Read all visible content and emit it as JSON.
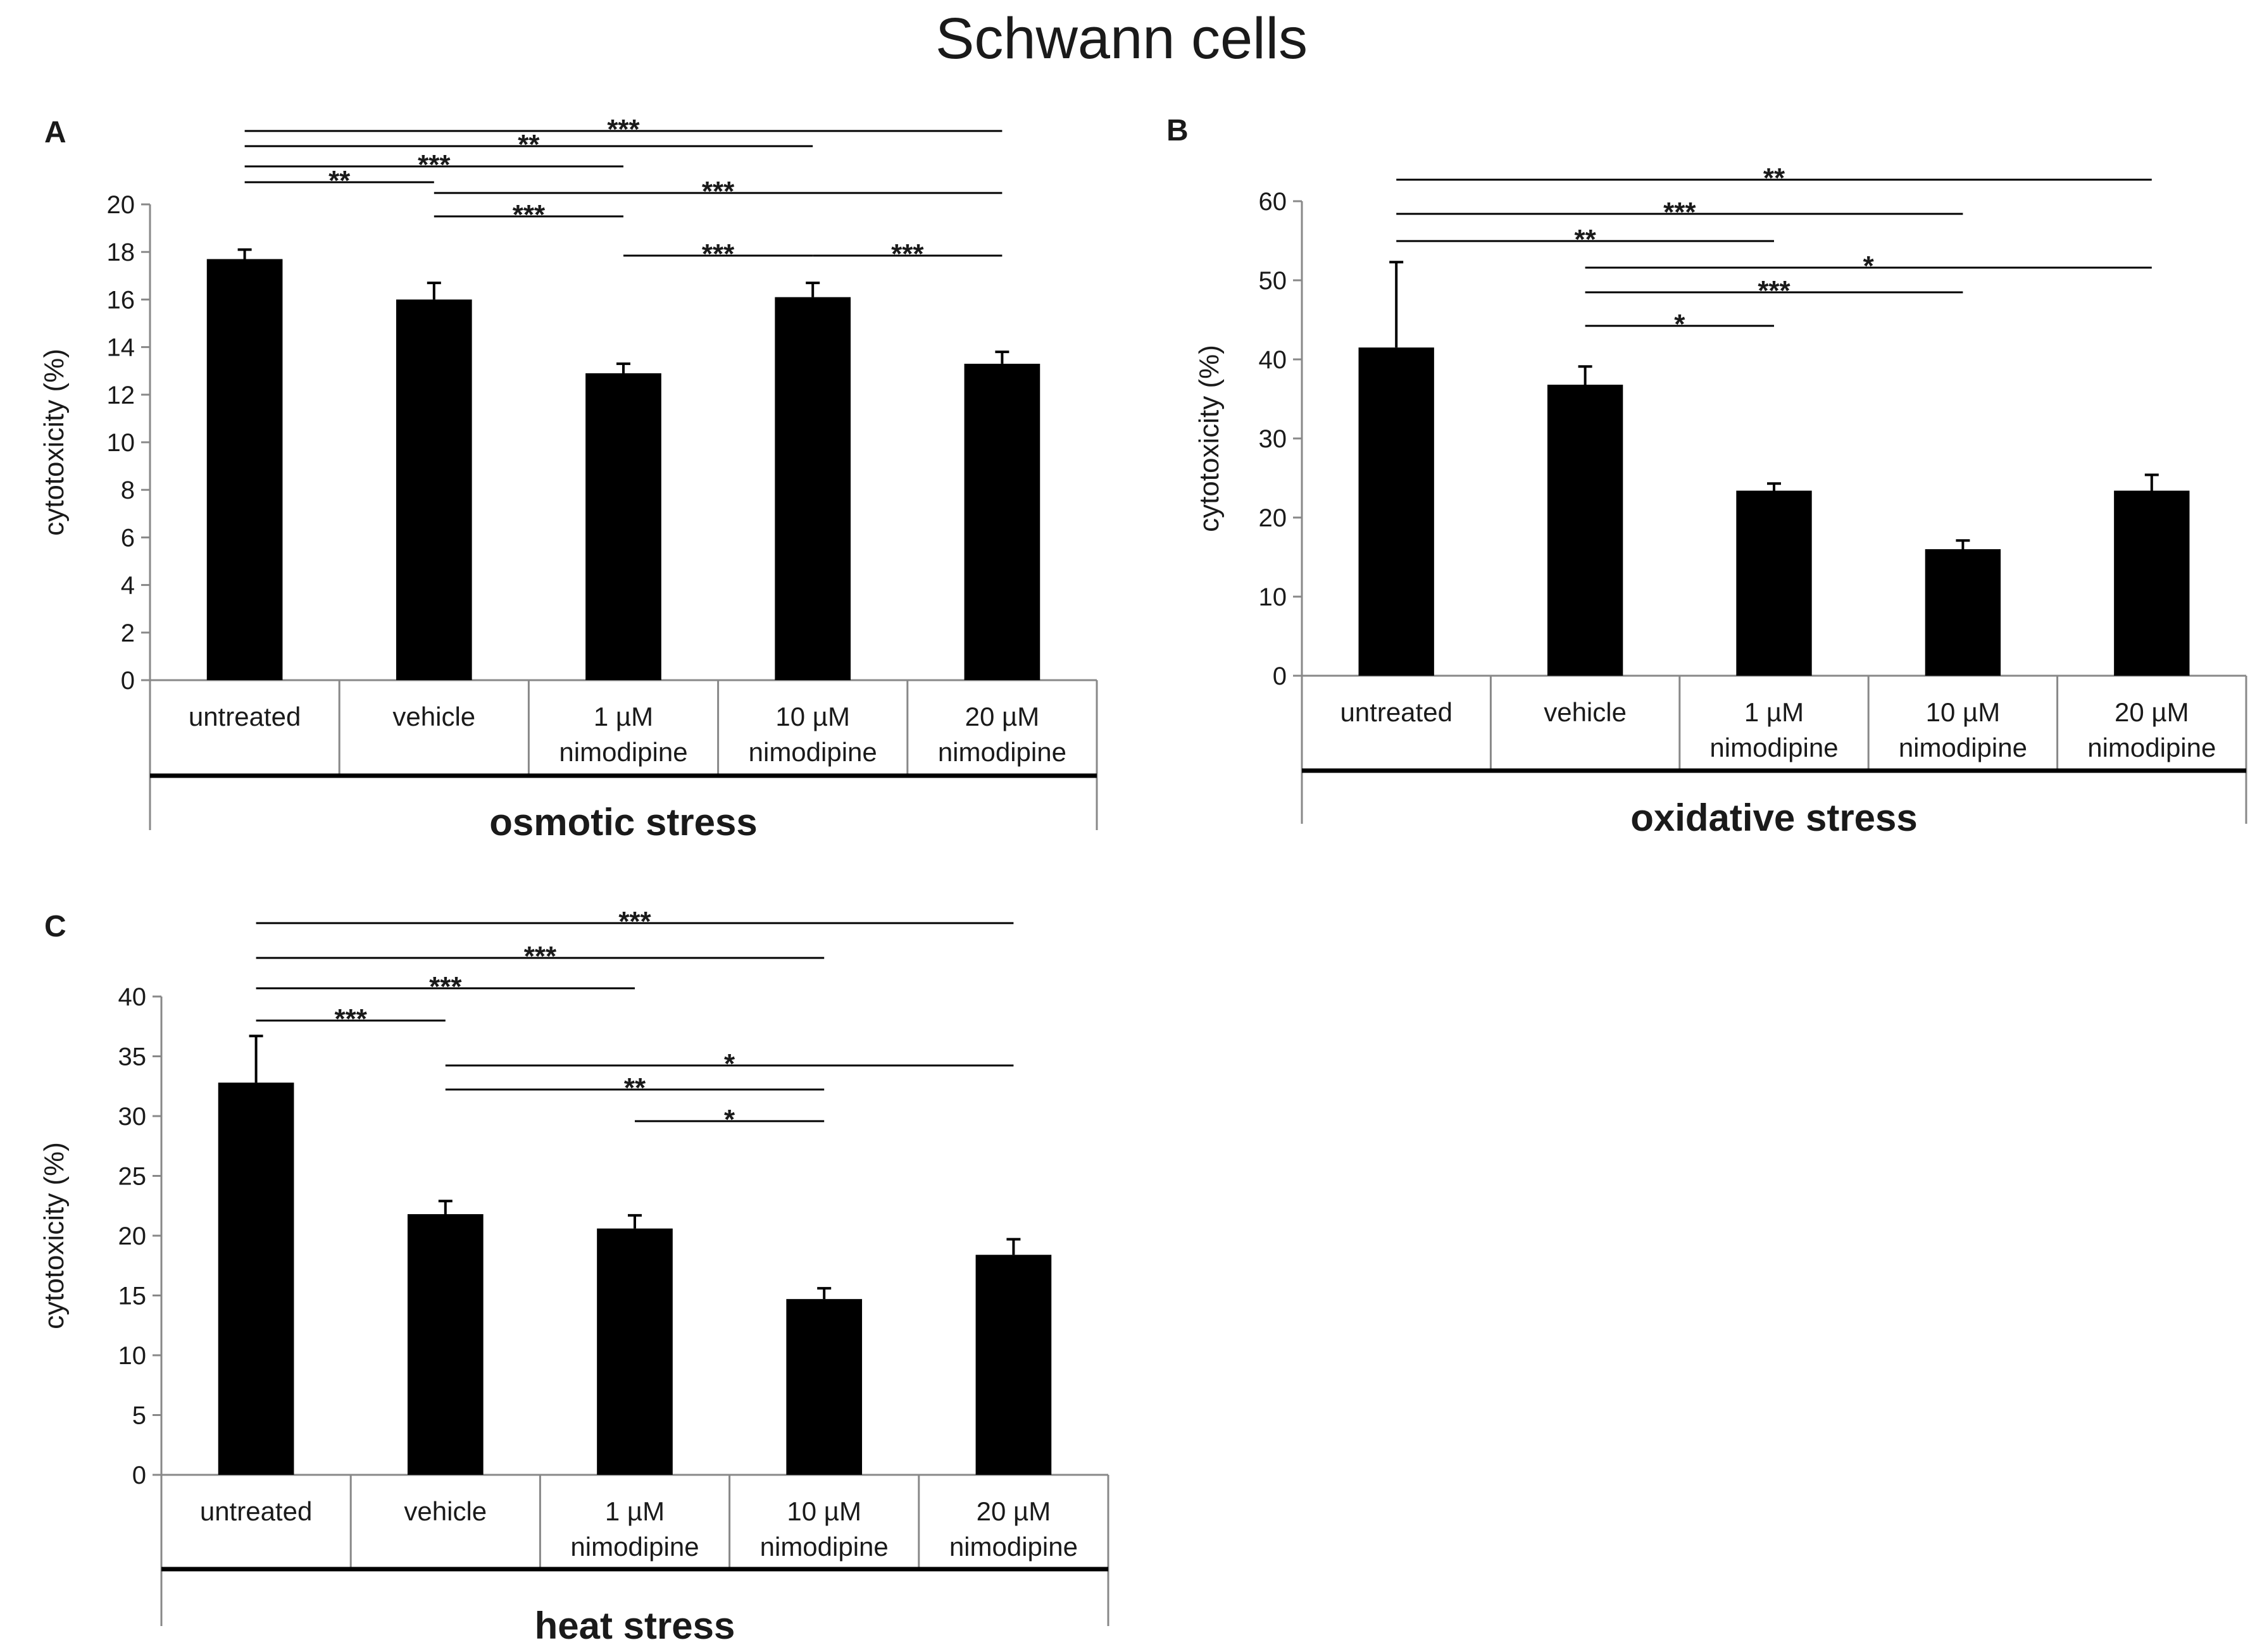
{
  "figure_title": "Schwann cells",
  "chart_data": [
    {
      "panel": "A",
      "type": "bar",
      "ylabel": "cytotoxicity  (%)",
      "group_label": "osmotic stress",
      "ylim": [
        0,
        20
      ],
      "yticks": [
        0,
        2,
        4,
        6,
        8,
        10,
        12,
        14,
        16,
        18,
        20
      ],
      "categories": [
        [
          "untreated"
        ],
        [
          "vehicle"
        ],
        [
          "1 µM",
          "nimodipine"
        ],
        [
          "10 µM",
          "nimodipine"
        ],
        [
          "20 µM",
          "nimodipine"
        ]
      ],
      "values": [
        17.7,
        16.0,
        12.9,
        16.1,
        13.3
      ],
      "errors": [
        0.4,
        0.7,
        0.4,
        0.6,
        0.5
      ],
      "significance": [
        {
          "from": 0,
          "to": 4,
          "label": "***"
        },
        {
          "from": 0,
          "to": 3,
          "label": "**"
        },
        {
          "from": 0,
          "to": 2,
          "label": "***"
        },
        {
          "from": 0,
          "to": 1,
          "label": "**"
        },
        {
          "from": 1,
          "to": 4,
          "label": "***"
        },
        {
          "from": 1,
          "to": 2,
          "label": "***"
        },
        {
          "from": 2,
          "to": 3,
          "label": "***"
        },
        {
          "from": 3,
          "to": 4,
          "label": "***"
        }
      ]
    },
    {
      "panel": "B",
      "type": "bar",
      "ylabel": "cytotoxicity  (%)",
      "group_label": "oxidative stress",
      "ylim": [
        0,
        60
      ],
      "yticks": [
        0,
        10,
        20,
        30,
        40,
        50,
        60
      ],
      "categories": [
        [
          "untreated"
        ],
        [
          "vehicle"
        ],
        [
          "1 µM",
          "nimodipine"
        ],
        [
          "10 µM",
          "nimodipine"
        ],
        [
          "20 µM",
          "nimodipine"
        ]
      ],
      "values": [
        41.5,
        36.8,
        23.4,
        16.0,
        23.4
      ],
      "errors": [
        10.8,
        2.3,
        0.9,
        1.1,
        2.0
      ],
      "significance": [
        {
          "from": 0,
          "to": 4,
          "label": "**"
        },
        {
          "from": 0,
          "to": 3,
          "label": "***"
        },
        {
          "from": 0,
          "to": 2,
          "label": "**"
        },
        {
          "from": 1,
          "to": 4,
          "label": "*"
        },
        {
          "from": 1,
          "to": 3,
          "label": "***"
        },
        {
          "from": 1,
          "to": 2,
          "label": "*"
        }
      ]
    },
    {
      "panel": "C",
      "type": "bar",
      "ylabel": "cytotoxicity  (%)",
      "group_label": "heat stress",
      "ylim": [
        0,
        40
      ],
      "yticks": [
        0,
        5,
        10,
        15,
        20,
        25,
        30,
        35,
        40
      ],
      "categories": [
        [
          "untreated"
        ],
        [
          "vehicle"
        ],
        [
          "1 µM",
          "nimodipine"
        ],
        [
          "10 µM",
          "nimodipine"
        ],
        [
          "20 µM",
          "nimodipine"
        ]
      ],
      "values": [
        32.8,
        21.8,
        20.6,
        14.7,
        18.4
      ],
      "errors": [
        3.9,
        1.1,
        1.1,
        0.9,
        1.3
      ],
      "significance": [
        {
          "from": 0,
          "to": 4,
          "label": "***"
        },
        {
          "from": 0,
          "to": 3,
          "label": "***"
        },
        {
          "from": 0,
          "to": 2,
          "label": "***"
        },
        {
          "from": 0,
          "to": 1,
          "label": "***"
        },
        {
          "from": 1,
          "to": 4,
          "label": "*"
        },
        {
          "from": 1,
          "to": 3,
          "label": "**"
        },
        {
          "from": 2,
          "to": 3,
          "label": "*"
        }
      ]
    }
  ]
}
